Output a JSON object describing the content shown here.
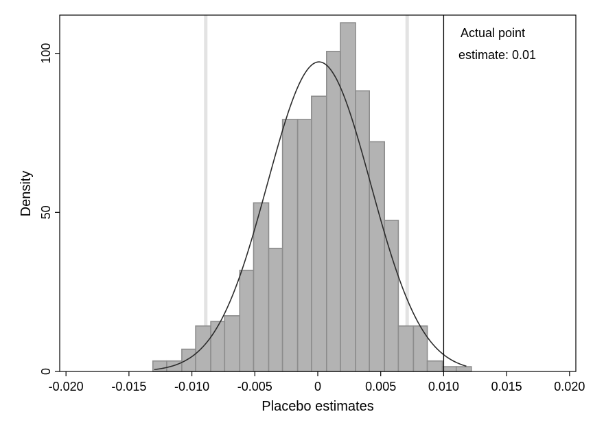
{
  "chart_data": {
    "type": "histogram",
    "xlabel": "Placebo estimates",
    "ylabel": "Density",
    "xlim": [
      -0.0205,
      0.0205
    ],
    "ylim": [
      0,
      112
    ],
    "x_ticks": [
      "-0.020",
      "-0.015",
      "-0.010",
      "-0.005",
      "0",
      "0.005",
      "0.010",
      "0.015",
      "0.020"
    ],
    "x_tick_values": [
      -0.02,
      -0.015,
      -0.01,
      -0.005,
      0,
      0.005,
      0.01,
      0.015,
      0.02
    ],
    "y_ticks": [
      "0",
      "50",
      "100"
    ],
    "y_tick_values": [
      0,
      50,
      100
    ],
    "grid": false,
    "bin_width": 0.00115,
    "bins": [
      {
        "x0": -0.0131,
        "x1": -0.012,
        "density": 3.3
      },
      {
        "x0": -0.012,
        "x1": -0.0108,
        "density": 3.3
      },
      {
        "x0": -0.0108,
        "x1": -0.0097,
        "density": 7.0
      },
      {
        "x0": -0.0097,
        "x1": -0.0085,
        "density": 14.3
      },
      {
        "x0": -0.0085,
        "x1": -0.0074,
        "density": 15.7
      },
      {
        "x0": -0.0074,
        "x1": -0.0062,
        "density": 17.5
      },
      {
        "x0": -0.0062,
        "x1": -0.0051,
        "density": 31.8
      },
      {
        "x0": -0.0051,
        "x1": -0.0039,
        "density": 53.0
      },
      {
        "x0": -0.0039,
        "x1": -0.0028,
        "density": 38.7
      },
      {
        "x0": -0.0028,
        "x1": -0.0016,
        "density": 79.2
      },
      {
        "x0": -0.0016,
        "x1": -0.0005,
        "density": 79.2
      },
      {
        "x0": -0.0005,
        "x1": 0.0007,
        "density": 86.5
      },
      {
        "x0": 0.0007,
        "x1": 0.0018,
        "density": 100.6
      },
      {
        "x0": 0.0018,
        "x1": 0.003,
        "density": 109.6
      },
      {
        "x0": 0.003,
        "x1": 0.0041,
        "density": 88.2
      },
      {
        "x0": 0.0041,
        "x1": 0.0053,
        "density": 72.2
      },
      {
        "x0": 0.0053,
        "x1": 0.0064,
        "density": 47.5
      },
      {
        "x0": 0.0064,
        "x1": 0.0076,
        "density": 14.3
      },
      {
        "x0": 0.0076,
        "x1": 0.0087,
        "density": 14.3
      },
      {
        "x0": 0.0087,
        "x1": 0.0099,
        "density": 3.3
      },
      {
        "x0": 0.0099,
        "x1": 0.011,
        "density": 1.5
      },
      {
        "x0": 0.011,
        "x1": 0.0122,
        "density": 1.5
      }
    ],
    "normal_curve": {
      "mean": 0.0001,
      "sd": 0.0041,
      "x_from": -0.013,
      "x_to": 0.0118
    },
    "reference_lines": [
      {
        "x": -0.0089,
        "kind": "interval-bound"
      },
      {
        "x": 0.0071,
        "kind": "interval-bound"
      },
      {
        "x": 0.01,
        "kind": "actual-estimate"
      }
    ],
    "annotation": {
      "line1": "Actual point",
      "line2": "estimate: 0.01"
    },
    "colors": {
      "bar_fill": "#b3b3b3",
      "bar_stroke": "#8c8c8c",
      "curve": "#2b2b2b",
      "interval_line": "#e3e3e3",
      "actual_line": "#000000",
      "frame": "#000000"
    }
  }
}
